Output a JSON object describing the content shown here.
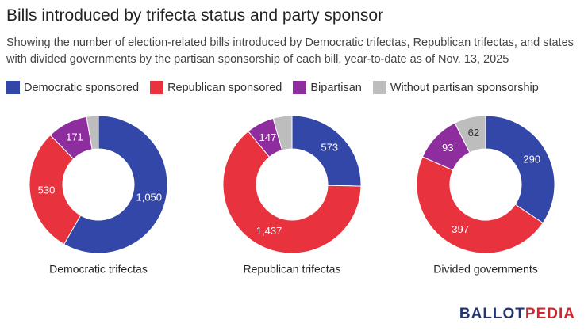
{
  "header": {
    "title": "Bills introduced by trifecta status and party sponsor",
    "subtitle": "Showing the number of election-related bills introduced by Democratic trifectas, Republican trifectas, and states with divided governments by the partisan sponsorship of each bill, year-to-date as of Nov. 13, 2025"
  },
  "logo": [
    "BALLOT",
    "PEDIA"
  ],
  "chart_data": [
    {
      "type": "pie",
      "title": "Democratic trifectas",
      "categories": [
        "Democratic sponsored",
        "Republican sponsored",
        "Bipartisan",
        "Without partisan sponsorship"
      ],
      "colors": [
        "#3347a8",
        "#e8333f",
        "#8e2e9e",
        "#bdbdbd"
      ],
      "values": [
        1050,
        530,
        171,
        50
      ],
      "value_labels": [
        "1,050",
        "530",
        "171",
        null
      ]
    },
    {
      "type": "pie",
      "title": "Republican trifectas",
      "categories": [
        "Democratic sponsored",
        "Republican sponsored",
        "Bipartisan",
        "Without partisan sponsorship"
      ],
      "colors": [
        "#3347a8",
        "#e8333f",
        "#8e2e9e",
        "#bdbdbd"
      ],
      "values": [
        573,
        1437,
        147,
        100
      ],
      "value_labels": [
        "573",
        "1,437",
        "147",
        null
      ]
    },
    {
      "type": "pie",
      "title": "Divided governments",
      "categories": [
        "Democratic sponsored",
        "Republican sponsored",
        "Bipartisan",
        "Without partisan sponsorship"
      ],
      "colors": [
        "#3347a8",
        "#e8333f",
        "#8e2e9e",
        "#bdbdbd"
      ],
      "values": [
        290,
        397,
        93,
        62
      ]
    }
  ]
}
